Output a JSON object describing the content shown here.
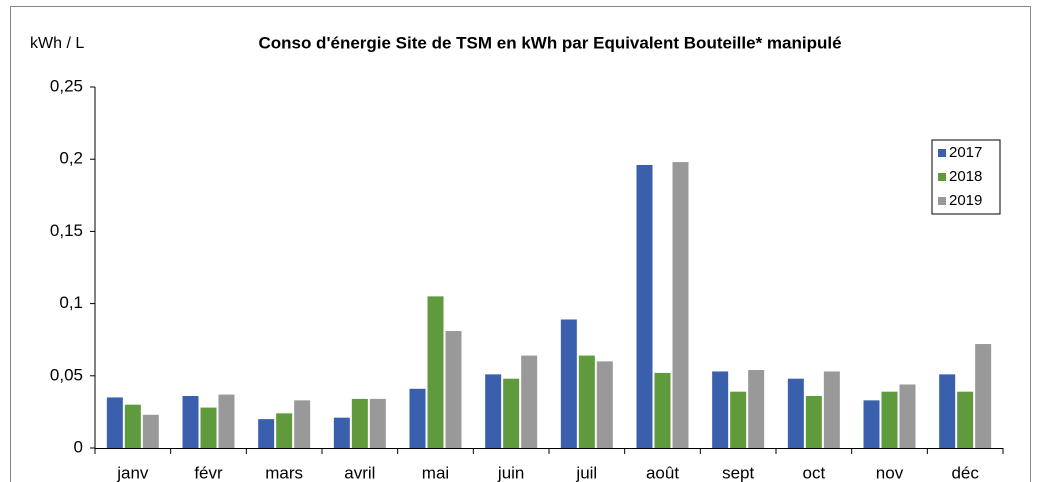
{
  "chart_data": {
    "type": "bar",
    "title": "Conso d'énergie Site de TSM en kWh par Equivalent Bouteille* manipulé",
    "y_label": "kWh /  L",
    "categories": [
      "janv",
      "févr",
      "mars",
      "avril",
      "mai",
      "juin",
      "juil",
      "août",
      "sept",
      "oct",
      "nov",
      "déc"
    ],
    "series": [
      {
        "name": "2017",
        "color": "#3a5fad",
        "values": [
          0.035,
          0.036,
          0.02,
          0.021,
          0.041,
          0.051,
          0.089,
          0.196,
          0.053,
          0.048,
          0.033,
          0.051
        ]
      },
      {
        "name": "2018",
        "color": "#5f9a3d",
        "values": [
          0.03,
          0.028,
          0.024,
          0.034,
          0.105,
          0.048,
          0.064,
          0.052,
          0.039,
          0.036,
          0.039,
          0.039
        ]
      },
      {
        "name": "2019",
        "color": "#999999",
        "values": [
          0.023,
          0.037,
          0.033,
          0.034,
          0.081,
          0.064,
          0.06,
          0.198,
          0.054,
          0.053,
          0.044,
          0.072
        ]
      }
    ],
    "ylim": [
      0,
      0.25
    ],
    "yticks": [
      0,
      {
        "value": 0.05,
        "label": "0,05"
      },
      {
        "value": 0.1,
        "label": "0,1"
      },
      {
        "value": 0.15,
        "label": "0,15"
      },
      {
        "value": 0.2,
        "label": "0,2"
      },
      {
        "value": 0.25,
        "label": "0,25"
      }
    ],
    "grid": false,
    "legend": "right"
  }
}
